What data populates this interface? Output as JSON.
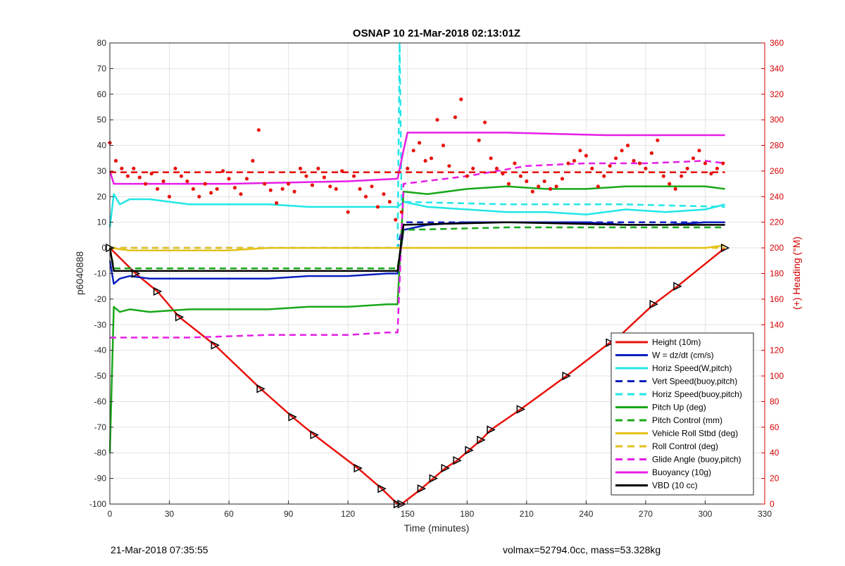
{
  "chart_data": {
    "type": "line",
    "title": "OSNAP 10 21-Mar-2018 02:13:01Z",
    "xlabel": "Time (minutes)",
    "ylabel": "p6040888",
    "y2label": "(+) Heading (°M)",
    "xlim": [
      0,
      330
    ],
    "ylim": [
      -100,
      80
    ],
    "y2lim": [
      0,
      360
    ],
    "xticks": [
      "0",
      "30",
      "60",
      "90",
      "120",
      "150",
      "180",
      "210",
      "240",
      "270",
      "300",
      "330"
    ],
    "yticks": [
      "80",
      "70",
      "60",
      "50",
      "40",
      "30",
      "20",
      "10",
      "0",
      "-10",
      "-20",
      "-30",
      "-40",
      "-50",
      "-60",
      "-70",
      "-80",
      "-90",
      "-100"
    ],
    "y2ticks": [
      "360",
      "340",
      "320",
      "300",
      "280",
      "260",
      "240",
      "220",
      "200",
      "180",
      "160",
      "140",
      "120",
      "100",
      "80",
      "60",
      "40",
      "20",
      "0"
    ],
    "grid": true,
    "legend_position": "bottom-right",
    "colors": {
      "height": "#e8120c",
      "w": "#0a1fbf",
      "horiz": "#22e6e6",
      "vert_buoy": "#0a1fbf",
      "horiz_buoy": "#22e6e6",
      "pitch": "#18a818",
      "pitch_ctrl": "#18a818",
      "roll": "#e6c21a",
      "roll_ctrl": "#e6c21a",
      "glide": "#e61ee6",
      "buoy": "#e61ee6",
      "vbd": "#000000",
      "heading": "#e8120c",
      "right_axis": "#d40000"
    },
    "series": [
      {
        "key": "height",
        "name": "Height (10m)",
        "style": "solid",
        "x": [
          0,
          13,
          24,
          35,
          53,
          76,
          92,
          103,
          125,
          137,
          145,
          147,
          157,
          163,
          169,
          175,
          181,
          187,
          192,
          207,
          230,
          252,
          256,
          274,
          286,
          310
        ],
        "y": [
          0,
          -10,
          -17,
          -27,
          -38,
          -55,
          -66,
          -73,
          -86,
          -94,
          -100,
          -100,
          -94,
          -90,
          -86,
          -83,
          -79,
          -75,
          -71,
          -63,
          -50,
          -37,
          -35,
          -22,
          -15,
          0
        ]
      },
      {
        "key": "w",
        "name": "W = dz/dt (cm/s)",
        "style": "solid",
        "x": [
          0,
          2,
          5,
          10,
          20,
          40,
          60,
          80,
          100,
          120,
          140,
          145,
          148,
          160,
          180,
          200,
          220,
          240,
          260,
          280,
          300,
          310
        ],
        "y": [
          -5,
          -14,
          -12,
          -11,
          -12,
          -12,
          -12,
          -12,
          -11,
          -11,
          -10,
          -10,
          7,
          9,
          10,
          10,
          10,
          10,
          9,
          9,
          10,
          10
        ]
      },
      {
        "key": "horiz",
        "name": "Horiz Speed(W,pitch)",
        "style": "solid",
        "x": [
          0,
          2,
          5,
          10,
          20,
          40,
          60,
          80,
          100,
          120,
          140,
          145,
          148,
          160,
          180,
          200,
          220,
          240,
          260,
          280,
          300,
          310
        ],
        "y": [
          8,
          21,
          17,
          19,
          19,
          17,
          17,
          17,
          16,
          16,
          16,
          16,
          18,
          16,
          15,
          14,
          14,
          13,
          15,
          14,
          15,
          17
        ]
      },
      {
        "key": "vert_buoy",
        "name": "Vert Speed(buoy,pitch)",
        "style": "dashed",
        "x": [
          0,
          20,
          60,
          100,
          140,
          145,
          148,
          200,
          250,
          310
        ],
        "y": [
          0,
          0,
          0,
          0,
          0,
          0,
          10,
          10,
          10,
          10
        ]
      },
      {
        "key": "horiz_buoy",
        "name": "Horiz Speed(buoy,pitch)",
        "style": "dashed",
        "x": [
          0,
          60,
          120,
          140,
          145,
          146,
          147,
          200,
          260,
          310
        ],
        "y": [
          0,
          0,
          0,
          0,
          0,
          80,
          18,
          17,
          17,
          16
        ]
      },
      {
        "key": "pitch",
        "name": "Pitch Up (deg)",
        "style": "solid",
        "x": [
          0,
          2,
          5,
          10,
          20,
          40,
          60,
          80,
          100,
          120,
          140,
          145,
          148,
          160,
          180,
          200,
          220,
          240,
          260,
          280,
          300,
          310
        ],
        "y": [
          -80,
          -23,
          -25,
          -24,
          -25,
          -24,
          -24,
          -24,
          -23,
          -23,
          -22,
          -22,
          22,
          21,
          23,
          24,
          23,
          23,
          24,
          24,
          24,
          23
        ]
      },
      {
        "key": "pitch_ctrl",
        "name": "Pitch Control (mm)",
        "style": "dashed",
        "x": [
          0,
          2,
          60,
          140,
          145,
          148,
          200,
          260,
          310
        ],
        "y": [
          0,
          -8,
          -8,
          -8,
          -8,
          7,
          8,
          8,
          8
        ]
      },
      {
        "key": "roll",
        "name": "Vehicle Roll Stbd (deg)",
        "style": "solid",
        "x": [
          0,
          10,
          20,
          40,
          60,
          80,
          100,
          120,
          140,
          145,
          148,
          160,
          180,
          200,
          220,
          240,
          260,
          280,
          300,
          310
        ],
        "y": [
          0,
          -1,
          -1,
          -1,
          -1,
          0,
          0,
          0,
          0,
          0,
          0,
          0,
          0,
          0,
          0,
          0,
          0,
          0,
          0,
          1
        ]
      },
      {
        "key": "roll_ctrl",
        "name": "Roll Control (deg)",
        "style": "dashed",
        "x": [
          0,
          10,
          60,
          120,
          140,
          145,
          148,
          200,
          260,
          310
        ],
        "y": [
          0,
          0,
          0,
          0,
          0,
          0,
          0,
          0,
          0,
          0
        ]
      },
      {
        "key": "glide",
        "name": "Glide Angle (buoy,pitch)",
        "style": "dashed",
        "x": [
          0,
          10,
          40,
          80,
          120,
          140,
          145,
          148,
          180,
          210,
          240,
          270,
          300,
          310
        ],
        "y": [
          -35,
          -35,
          -35,
          -34,
          -34,
          -33,
          -33,
          25,
          28,
          32,
          33,
          33,
          34,
          33
        ]
      },
      {
        "key": "buoy",
        "name": "Buoyancy (10g)",
        "style": "solid",
        "x": [
          0,
          2,
          60,
          120,
          145,
          148,
          150,
          200,
          250,
          300,
          310
        ],
        "y": [
          30,
          25,
          25,
          26,
          27,
          38,
          45,
          45,
          44,
          44,
          44
        ]
      },
      {
        "key": "vbd",
        "name": "VBD (10 cc)",
        "style": "solid",
        "x": [
          0,
          2,
          60,
          140,
          145,
          148,
          200,
          260,
          310
        ],
        "y": [
          0,
          -9,
          -9,
          -9,
          -9,
          9,
          10,
          9,
          9
        ]
      },
      {
        "key": "heading",
        "name": "",
        "style": "dashed",
        "axis": "right",
        "x": [
          0,
          310
        ],
        "y": [
          259,
          259
        ]
      }
    ],
    "heading_points": {
      "x": [
        0,
        3,
        6,
        9,
        12,
        15,
        18,
        21,
        24,
        27,
        30,
        33,
        36,
        39,
        42,
        45,
        48,
        51,
        54,
        57,
        60,
        63,
        66,
        69,
        72,
        75,
        78,
        81,
        84,
        87,
        90,
        93,
        96,
        99,
        102,
        105,
        108,
        111,
        114,
        117,
        120,
        123,
        126,
        129,
        132,
        135,
        138,
        141,
        144,
        147,
        150,
        153,
        156,
        159,
        162,
        165,
        168,
        171,
        174,
        177,
        180,
        183,
        186,
        189,
        192,
        195,
        198,
        201,
        204,
        207,
        210,
        213,
        216,
        219,
        222,
        225,
        228,
        231,
        234,
        237,
        240,
        243,
        246,
        249,
        252,
        255,
        258,
        261,
        264,
        267,
        270,
        273,
        276,
        279,
        282,
        285,
        288,
        291,
        294,
        297,
        300,
        303,
        306,
        309
      ],
      "y": [
        282,
        268,
        262,
        256,
        262,
        255,
        250,
        258,
        246,
        252,
        240,
        262,
        256,
        252,
        246,
        240,
        250,
        243,
        246,
        260,
        254,
        247,
        242,
        254,
        268,
        292,
        250,
        245,
        235,
        246,
        250,
        244,
        262,
        256,
        249,
        262,
        255,
        248,
        246,
        260,
        228,
        256,
        246,
        240,
        248,
        232,
        242,
        236,
        222,
        228,
        262,
        276,
        282,
        268,
        270,
        300,
        280,
        264,
        302,
        316,
        256,
        262,
        284,
        298,
        270,
        262,
        258,
        250,
        266,
        256,
        252,
        244,
        248,
        252,
        246,
        248,
        254,
        266,
        268,
        276,
        272,
        262,
        248,
        256,
        264,
        270,
        276,
        280,
        268,
        266,
        262,
        274,
        284,
        256,
        250,
        246,
        256,
        262,
        270,
        276,
        266,
        258,
        262,
        266
      ]
    }
  },
  "footer": {
    "left": "21-Mar-2018 07:35:55",
    "right": "volmax=52794.0cc, mass=53.328kg"
  }
}
